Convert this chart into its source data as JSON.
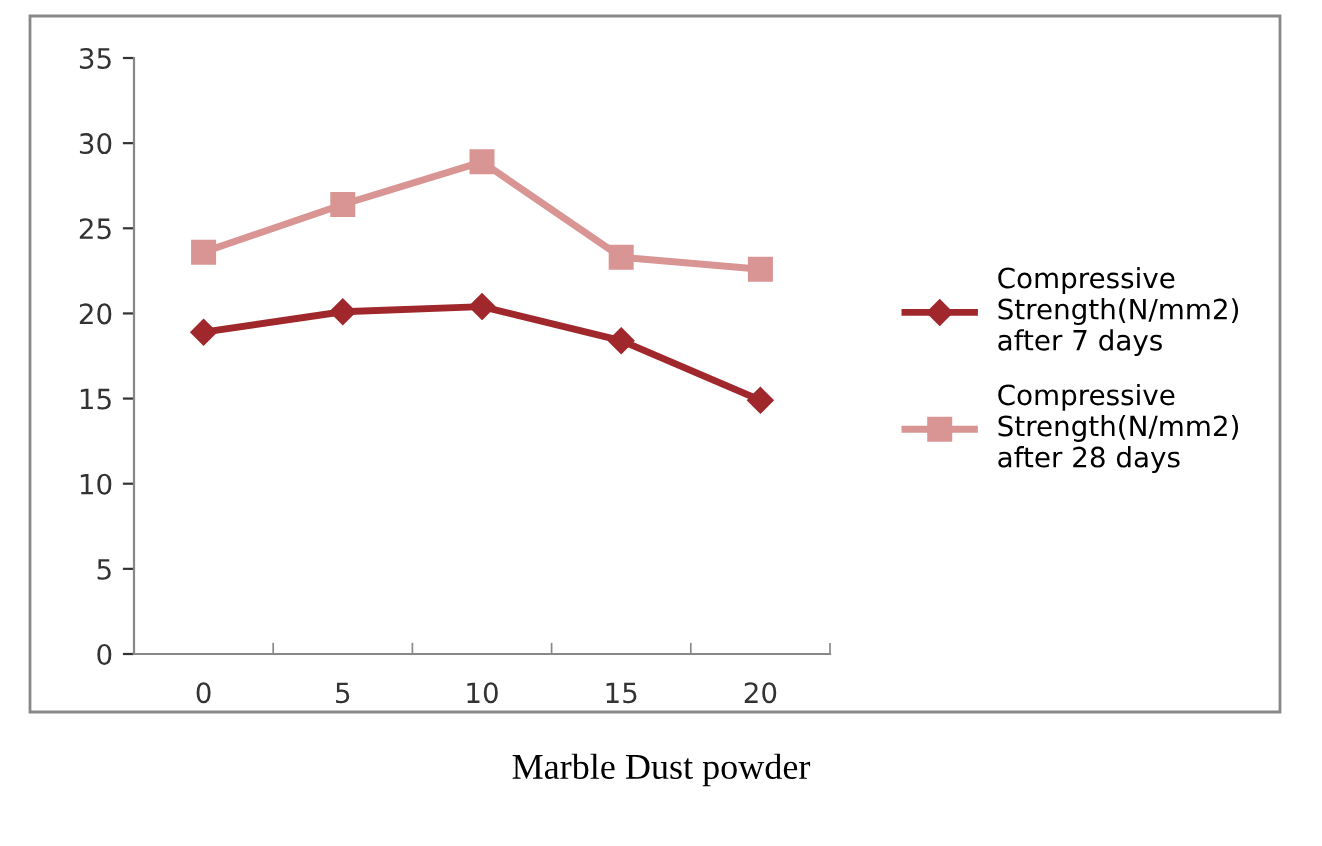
{
  "chart_data": {
    "type": "line",
    "xlabel": "Marble Dust powder",
    "categories": [
      "0",
      "5",
      "10",
      "15",
      "20"
    ],
    "series": [
      {
        "name": "Compressive Strength(N/mm2) after 7 days",
        "color": "#a0282d",
        "marker": "diamond",
        "values": [
          18.9,
          20.1,
          20.4,
          18.4,
          14.9
        ]
      },
      {
        "name": "Compressive Strength(N/mm2) after 28 days",
        "color": "#d99594",
        "marker": "square",
        "values": [
          23.6,
          26.4,
          28.9,
          23.3,
          22.6
        ]
      }
    ],
    "ylim": [
      0,
      35
    ],
    "yticks": [
      0,
      5,
      10,
      15,
      20,
      25,
      30,
      35
    ],
    "grid": false,
    "legend": "right",
    "line_style": "solid"
  }
}
